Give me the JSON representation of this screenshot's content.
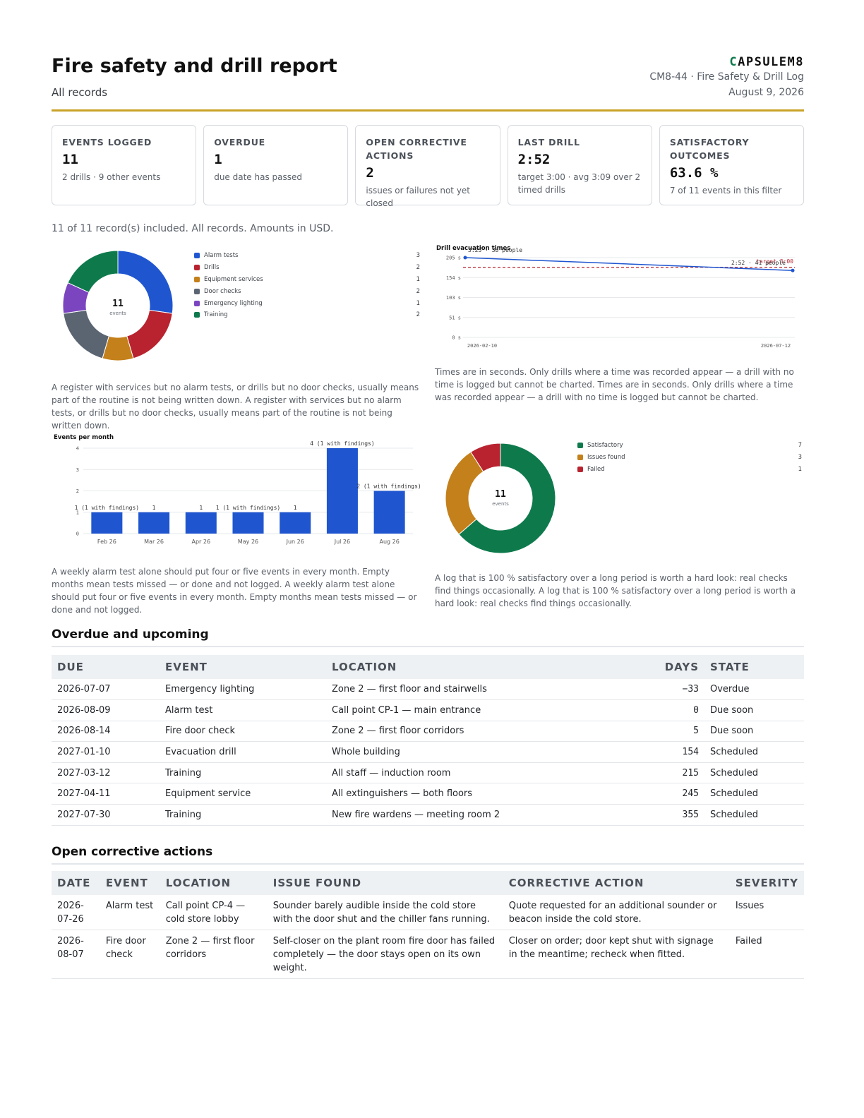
{
  "header": {
    "title": "Fire safety and drill report",
    "subtitle": "All records",
    "brand_mark": "C",
    "brand_rest": "APSULEM8",
    "doc_ref": "CM8-44 · Fire Safety & Drill Log",
    "doc_date": "August 9, 2026",
    "accent_color": "#c9a227"
  },
  "cards": [
    {
      "label": "EVENTS LOGGED",
      "value": "11",
      "note": "2 drills · 9 other events"
    },
    {
      "label": "OVERDUE",
      "value": "1",
      "note": "due date has passed"
    },
    {
      "label": "OPEN CORRECTIVE ACTIONS",
      "value": "2",
      "note": "issues or failures not yet closed"
    },
    {
      "label": "LAST DRILL",
      "value": "2:52",
      "note": "target 3:00 · avg 3:09 over 2 timed drills"
    },
    {
      "label": "SATISFACTORY OUTCOMES",
      "value": "63.6 %",
      "note": "7 of 11 events in this filter"
    }
  ],
  "included_text": "11 of 11 record(s) included. All records. Amounts in USD.",
  "captions": {
    "types": "A register with services but no alarm tests, or drills but no door checks, usually means part of the routine is not being written down. A register with services but no alarm tests, or drills but no door checks, usually means part of the routine is not being written down.",
    "drills": "Times are in seconds. Only drills where a time was recorded appear — a drill with no time is logged but cannot be charted. Times are in seconds. Only drills where a time was recorded appear — a drill with no time is logged but cannot be charted.",
    "monthly": "A weekly alarm test alone should put four or five events in every month. Empty months mean tests missed — or done and not logged. A weekly alarm test alone should put four or five events in every month. Empty months mean tests missed — or done and not logged.",
    "outcomes": "A log that is 100 % satisfactory over a long period is worth a hard look: real checks find things occasionally. A log that is 100 % satisfactory over a long period is worth a hard look: real checks find things occasionally."
  },
  "chart_data": [
    {
      "type": "pie",
      "center_value": "11",
      "center_caption": "events",
      "categories": [
        "Alarm tests",
        "Drills",
        "Equipment services",
        "Door checks",
        "Emergency lighting",
        "Training"
      ],
      "values": [
        3,
        2,
        1,
        2,
        1,
        2
      ],
      "colors": [
        "#1f56d0",
        "#b8232f",
        "#c4801a",
        "#5b6572",
        "#7b45c0",
        "#0e7a4c"
      ],
      "legend": "right"
    },
    {
      "type": "line",
      "title": "Drill evacuation times",
      "x": [
        "2026-02-10",
        "2026-07-12"
      ],
      "y": [
        205,
        172
      ],
      "point_labels": [
        "3:25 · 38 people",
        "2:52 · 41 people"
      ],
      "target_y": 180,
      "target_label": "target 3:00",
      "yticks": [
        "0 s",
        "51 s",
        "103 s",
        "154 s",
        "205 s"
      ],
      "ylim": [
        0,
        205
      ],
      "line_color": "#1f56d0",
      "target_color": "#b8232f",
      "grid": true
    },
    {
      "type": "bar",
      "title": "Events per month",
      "categories": [
        "Feb 26",
        "Mar 26",
        "Apr 26",
        "May 26",
        "Jun 26",
        "Jul 26",
        "Aug 26"
      ],
      "values": [
        1,
        1,
        1,
        1,
        1,
        4,
        2
      ],
      "data_labels": [
        "1 (1 with findings)",
        "1",
        "1",
        "1 (1 with findings)",
        "1",
        "4 (1 with findings)",
        "2 (1 with findings)"
      ],
      "yticks": [
        "0",
        "1",
        "2",
        "3",
        "4"
      ],
      "ylim": [
        0,
        4
      ],
      "bar_color": "#1f56d0",
      "grid": true
    },
    {
      "type": "pie",
      "center_value": "11",
      "center_caption": "events",
      "categories": [
        "Satisfactory",
        "Issues found",
        "Failed"
      ],
      "values": [
        7,
        3,
        1
      ],
      "colors": [
        "#0e7a4c",
        "#c4801a",
        "#b8232f"
      ],
      "legend": "right"
    }
  ],
  "overdue": {
    "title": "Overdue and upcoming",
    "columns": [
      "DUE",
      "EVENT",
      "LOCATION",
      "DAYS",
      "STATE"
    ],
    "rows": [
      {
        "due": "2026-07-07",
        "event": "Emergency lighting",
        "location": "Zone 2 — first floor and stairwells",
        "days": "−33",
        "state": "Overdue"
      },
      {
        "due": "2026-08-09",
        "event": "Alarm test",
        "location": "Call point CP-1 — main entrance",
        "days": "0",
        "state": "Due soon"
      },
      {
        "due": "2026-08-14",
        "event": "Fire door check",
        "location": "Zone 2 — first floor corridors",
        "days": "5",
        "state": "Due soon"
      },
      {
        "due": "2027-01-10",
        "event": "Evacuation drill",
        "location": "Whole building",
        "days": "154",
        "state": "Scheduled"
      },
      {
        "due": "2027-03-12",
        "event": "Training",
        "location": "All staff — induction room",
        "days": "215",
        "state": "Scheduled"
      },
      {
        "due": "2027-04-11",
        "event": "Equipment service",
        "location": "All extinguishers — both floors",
        "days": "245",
        "state": "Scheduled"
      },
      {
        "due": "2027-07-30",
        "event": "Training",
        "location": "New fire wardens — meeting room 2",
        "days": "355",
        "state": "Scheduled"
      }
    ]
  },
  "actions": {
    "title": "Open corrective actions",
    "columns": [
      "DATE",
      "EVENT",
      "LOCATION",
      "ISSUE FOUND",
      "CORRECTIVE ACTION",
      "SEVERITY"
    ],
    "rows": [
      {
        "date": "2026-07-26",
        "event": "Alarm test",
        "location": "Call point CP-4 — cold store lobby",
        "issue": "Sounder barely audible inside the cold store with the door shut and the chiller fans running.",
        "action": "Quote requested for an additional sounder or beacon inside the cold store.",
        "severity": "Issues"
      },
      {
        "date": "2026-08-07",
        "event": "Fire door check",
        "location": "Zone 2 — first floor corridors",
        "issue": "Self-closer on the plant room fire door has failed completely — the door stays open on its own weight.",
        "action": "Closer on order; door kept shut with signage in the meantime; recheck when fitted.",
        "severity": "Failed"
      }
    ]
  }
}
